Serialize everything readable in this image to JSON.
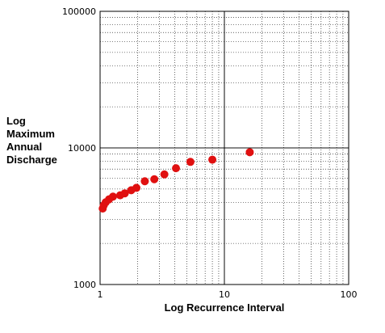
{
  "chart_data": {
    "type": "scatter",
    "title": "",
    "xlabel": "Log Recurrence Interval",
    "ylabel_lines": [
      "Log",
      "Maximum",
      "Annual",
      "Discharge"
    ],
    "x_scale": "log",
    "y_scale": "log",
    "xlim": [
      1,
      100
    ],
    "ylim": [
      1000,
      100000
    ],
    "x_tick_labels": [
      "1",
      "10",
      "100"
    ],
    "y_tick_labels": [
      "1000",
      "10000",
      "100000"
    ],
    "grid": true,
    "marker_color": "#e01010",
    "series": [
      {
        "x": [
          1.05,
          1.07,
          1.11,
          1.18,
          1.27,
          1.45,
          1.58,
          1.78,
          1.96,
          2.29,
          2.73,
          3.29,
          4.08,
          5.33,
          8.0,
          16.0
        ],
        "y": [
          3600,
          3800,
          4000,
          4200,
          4400,
          4500,
          4650,
          4900,
          5100,
          5700,
          5900,
          6400,
          7100,
          7900,
          8200,
          9300
        ]
      }
    ]
  }
}
